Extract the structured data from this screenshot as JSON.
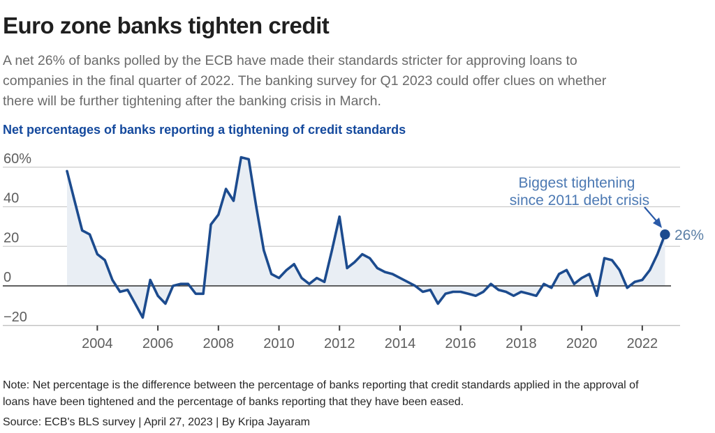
{
  "header": {
    "title": "Euro zone banks tighten credit",
    "intro_lines": [
      "A net 26% of banks polled by the ECB have made their standards stricter for approving loans to",
      "companies in the final quarter of 2022. The banking survey for Q1 2023 could offer clues on whether",
      "there will be further tightening after the banking crisis in March."
    ],
    "chart_label": "Net percentages of banks reporting a tightening of credit standards"
  },
  "chart_data": {
    "type": "area",
    "title": "Net percentages of banks reporting a tightening of credit standards",
    "unit": "%",
    "frequency": "quarterly",
    "x_start": "2003 Q1",
    "x_end": "2022 Q4",
    "ylim": [
      -20,
      60
    ],
    "grid": true,
    "yticks": [
      {
        "value": 60,
        "label": "60%"
      },
      {
        "value": 40,
        "label": "40"
      },
      {
        "value": 20,
        "label": "20"
      },
      {
        "value": 0,
        "label": "0"
      },
      {
        "value": -20,
        "label": "−20"
      }
    ],
    "xticks": [
      2004,
      2006,
      2008,
      2010,
      2012,
      2014,
      2016,
      2018,
      2020,
      2022
    ],
    "values": [
      58,
      43,
      28,
      26,
      16,
      13,
      3,
      -3,
      -2,
      -9,
      -16,
      3,
      -5,
      -9,
      0,
      1,
      1,
      -4,
      -4,
      31,
      36,
      49,
      43,
      65,
      64,
      40,
      18,
      6,
      4,
      8,
      11,
      4,
      1,
      4,
      2,
      18,
      35,
      9,
      12,
      16,
      14,
      9,
      7,
      6,
      4,
      2,
      0,
      -3,
      -2,
      -9,
      -4,
      -3,
      -3,
      -4,
      -5,
      -3,
      1,
      -2,
      -3,
      -5,
      -3,
      -4,
      -5,
      1,
      -1,
      6,
      8,
      1,
      4,
      6,
      -5,
      14,
      13,
      8,
      -1,
      2,
      3,
      8,
      16,
      26
    ],
    "last_point": {
      "value": 26,
      "label": "26%"
    },
    "annotation": {
      "line1": "Biggest tightening",
      "line2": "since 2011 debt crisis"
    },
    "colors": {
      "line": "#1c4b8e",
      "fill": "#e9eef4",
      "grid": "#cbcbcb",
      "zero_line": "#2b2b2b",
      "axis_line": "#b9b9b9",
      "tick": "#3d3d3d",
      "tick_label": "#5e5e5e",
      "annotation_text": "#4c79b3",
      "arrow": "#2a5aa8",
      "point_label": "#5b7fa6"
    }
  },
  "footer": {
    "note_lines": [
      "Note: Net percentage is the difference between the percentage of banks reporting that credit standards applied in the approval of",
      "loans have been tightened and the percentage of banks reporting that they have been eased."
    ],
    "source": "Source: ECB's BLS survey | April 27, 2023 | By Kripa Jayaram"
  }
}
